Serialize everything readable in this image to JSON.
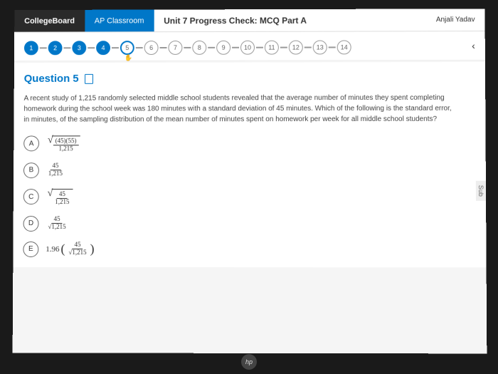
{
  "header": {
    "logo": "CollegeBoard",
    "tab": "AP Classroom",
    "title": "Unit 7 Progress Check: MCQ Part A",
    "user": "Anjali Yadav"
  },
  "progress": {
    "total": 14,
    "completed": [
      1,
      2,
      3,
      4
    ],
    "current": 5
  },
  "question": {
    "number": "Question 5",
    "text": "A recent study of 1,215 randomly selected middle school students revealed that the average number of minutes they spent completing homework during the school week was 180 minutes with a standard deviation of 45 minutes. Which of the following is the standard error, in minutes, of the sampling distribution of the mean number of minutes spent on homework per week for all middle school students?"
  },
  "options": {
    "a_letter": "A",
    "a_top": "(45)(55)",
    "a_bot": "1,215",
    "b_letter": "B",
    "b_top": "45",
    "b_bot": "1,215",
    "c_letter": "C",
    "c_top": "45",
    "c_bot": "1,215",
    "d_letter": "D",
    "d_top": "45",
    "d_bot": "√1,215",
    "e_letter": "E",
    "e_coef": "1.96",
    "e_top": "45",
    "e_bot": "√1,215"
  },
  "side": "Sub",
  "laptop": "hp"
}
